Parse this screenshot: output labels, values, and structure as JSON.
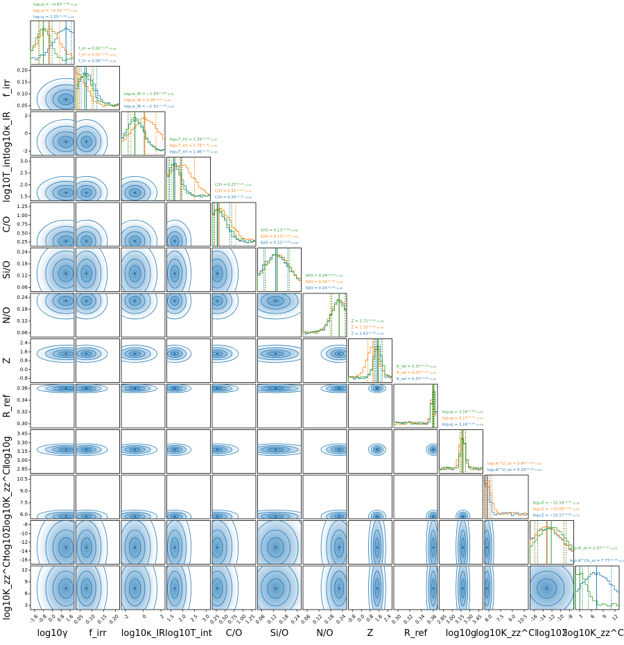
{
  "chart_data": {
    "type": "corner",
    "parameters": [
      {
        "id": "logg_gamma",
        "xlabel": "log10γ",
        "ylabel": "log10γ",
        "ticks": [
          "-1.6",
          "-0.8",
          "0.0",
          "0.8",
          "1.6"
        ],
        "range": [
          -2.0,
          2.0
        ]
      },
      {
        "id": "f_irr",
        "xlabel": "f_irr",
        "ylabel": "f_irr",
        "ticks": [
          "0.05",
          "0.10",
          "0.15",
          "0.20"
        ],
        "range": [
          0.0,
          0.25
        ]
      },
      {
        "id": "log_kappa_IR",
        "xlabel": "log10κ_IR",
        "ylabel": "log10κ_IR",
        "ticks": [
          "-2",
          "0",
          "2"
        ],
        "range": [
          -4.0,
          4.0
        ]
      },
      {
        "id": "log_T_int",
        "xlabel": "log10T_int",
        "ylabel": "log10T_int",
        "ticks": [
          "1.5",
          "2.0",
          "2.5",
          "3.0"
        ],
        "range": [
          1.0,
          3.5
        ]
      },
      {
        "id": "C_O",
        "xlabel": "C/O",
        "ylabel": "C/O",
        "ticks": [
          "0.25",
          "0.50",
          "0.75",
          "1.00",
          "1.25"
        ],
        "range": [
          0.1,
          1.4
        ]
      },
      {
        "id": "Si_O",
        "xlabel": "Si/O",
        "ylabel": "Si/O",
        "ticks": [
          "0.06",
          "0.12",
          "0.18",
          "0.24"
        ],
        "range": [
          0.0,
          0.29
        ]
      },
      {
        "id": "N_O",
        "xlabel": "N/O",
        "ylabel": "N/O",
        "ticks": [
          "0.06",
          "0.12",
          "0.18",
          "0.24"
        ],
        "range": [
          0.0,
          0.29
        ]
      },
      {
        "id": "Z",
        "xlabel": "Z",
        "ylabel": "Z",
        "ticks": [
          "-0.8",
          "0.0",
          "0.8",
          "1.6",
          "2.4"
        ],
        "range": [
          -1.0,
          3.0
        ]
      },
      {
        "id": "R_ref",
        "xlabel": "R_ref",
        "ylabel": "R_ref",
        "ticks": [
          "0.30",
          "0.32",
          "0.34",
          "0.36"
        ],
        "range": [
          0.29,
          0.375
        ]
      },
      {
        "id": "log_g",
        "xlabel": "log10g",
        "ylabel": "log10g",
        "ticks": [
          "2.85",
          "3.00",
          "3.15",
          "3.30",
          "3.45"
        ],
        "range": [
          2.8,
          3.5
        ]
      },
      {
        "id": "log_Kzz_Cl",
        "xlabel": "log10K_zz^Cl",
        "ylabel": "log10K_zz^Cl",
        "ticks": [
          "6.0",
          "7.5",
          "9.0",
          "10.5"
        ],
        "range": [
          5.0,
          11.5
        ]
      },
      {
        "id": "log_Sigma",
        "xlabel": "log10Σ̇",
        "ylabel": "log10Σ̇",
        "ticks": [
          "-16",
          "-14",
          "-12",
          "-10",
          "-8"
        ],
        "range": [
          -17.0,
          -7.0
        ]
      },
      {
        "id": "log_Kzz_Ch",
        "xlabel": "log10K_zz^Ch",
        "ylabel": "log10K_zz^Ch",
        "ticks": [
          "3",
          "6",
          "9",
          "12"
        ],
        "range": [
          1.0,
          15.0
        ]
      }
    ],
    "row_tick_overrides": {
      "f_irr": [
        "0.05",
        "0.10",
        "0.15",
        "0.20"
      ],
      "Z": [
        "-0.8",
        "0.0",
        "0.8",
        "1.6",
        "2.4"
      ],
      "log_Kzz_Cl": [
        "6.0",
        "7.5",
        "9.0",
        "10.5"
      ],
      "log_Kzz_Ch": [
        "3",
        "6",
        "9",
        "12"
      ]
    },
    "series_colors": {
      "green": "#2ca02c",
      "orange": "#ff7f0e",
      "blue": "#1f77b4"
    },
    "summaries": [
      {
        "param": "logg_gamma",
        "green": "log₁₀γ = −0.83⁺⁰·⁸⁰₋₀.₄₂",
        "orange": "log₁₀γ = −0.33⁺¹·⁰⁰₋₀.₈₅",
        "blue": "log₁₀γ = 1.25⁺⁰·⁴⁹₋₁.₅₀",
        "med": {
          "green": -0.83,
          "orange": -0.33,
          "blue": 1.25
        },
        "lo": {
          "green": -1.25,
          "orange": -1.18,
          "blue": -0.25
        },
        "hi": {
          "green": -0.03,
          "orange": 0.67,
          "blue": 1.74
        }
      },
      {
        "param": "f_irr",
        "green": "f_irr = 0.05⁺⁰·⁰⁵₋₀.₀₃",
        "orange": "f_irr = 0.01⁺⁰·⁰⁸₋₀.₀₁",
        "blue": "f_irr = 0.06⁺⁰·⁰⁶₋₀.₀₃",
        "med": {
          "green": 0.05,
          "orange": 0.01,
          "blue": 0.06
        },
        "lo": {
          "green": 0.02,
          "orange": 0.0,
          "blue": 0.03
        },
        "hi": {
          "green": 0.1,
          "orange": 0.09,
          "blue": 0.12
        }
      },
      {
        "param": "log_kappa_IR",
        "green": "log₁₀κ_IR = −1.53⁺¹·⁶⁹₋₁.₂₂",
        "orange": "log₁₀κ_IR = 0.28⁺²·⁰⁷₋₂.₅₄",
        "blue": "log₁₀κ_IR = −1.51⁺¹·⁷⁹₋₁.₂₅",
        "med": {
          "green": -1.53,
          "orange": 0.28,
          "blue": -1.51
        },
        "lo": {
          "green": -2.75,
          "orange": -2.26,
          "blue": -2.76
        },
        "hi": {
          "green": 0.16,
          "orange": 2.35,
          "blue": 0.28
        }
      },
      {
        "param": "log_T_int",
        "green": "log₁₀T_int = 1.39⁺⁰·⁴⁴₋₀.₂₇",
        "orange": "log₁₀T_int = 1.78⁺⁰·⁸¹₋₀.₄₉",
        "blue": "log₁₀T_int = 1.46⁺⁰·⁴¹₋₀.₂₉",
        "med": {
          "green": 1.39,
          "orange": 1.78,
          "blue": 1.46
        },
        "lo": {
          "green": 1.12,
          "orange": 1.29,
          "blue": 1.17
        },
        "hi": {
          "green": 1.83,
          "orange": 2.59,
          "blue": 1.87
        }
      },
      {
        "param": "C_O",
        "green": "C/O = 0.27⁺⁰·⁴¹₋₀.₁₁",
        "orange": "C/O = 0.31⁺⁰·⁴⁹₋₀.₁₄",
        "blue": "C/O = 0.25⁺⁰·³⁷₋₀.₁₀",
        "med": {
          "green": 0.27,
          "orange": 0.31,
          "blue": 0.25
        },
        "lo": {
          "green": 0.16,
          "orange": 0.17,
          "blue": 0.15
        },
        "hi": {
          "green": 0.68,
          "orange": 0.8,
          "blue": 0.62
        }
      },
      {
        "param": "Si_O",
        "green": "Si/O = 0.13⁺⁰·⁰⁸₋₀.₀₈",
        "orange": "Si/O = 0.13⁺⁰·⁰⁸₋₀.₀₈",
        "blue": "Si/O = 0.12⁺⁰·⁰⁸₋₀.₀₈",
        "med": {
          "green": 0.13,
          "orange": 0.13,
          "blue": 0.12
        },
        "lo": {
          "green": 0.05,
          "orange": 0.05,
          "blue": 0.04
        },
        "hi": {
          "green": 0.21,
          "orange": 0.21,
          "blue": 0.2
        }
      },
      {
        "param": "N_O",
        "green": "N/O = 0.24⁺⁰·⁰⁴₋₀.₀₅",
        "orange": "N/O = 0.24⁺⁰·⁰⁴₋₀.₀₆",
        "blue": "N/O = 0.24⁺⁰·⁰⁴₋₀.₀₅",
        "med": {
          "green": 0.24,
          "orange": 0.24,
          "blue": 0.24
        },
        "lo": {
          "green": 0.19,
          "orange": 0.18,
          "blue": 0.19
        },
        "hi": {
          "green": 0.28,
          "orange": 0.28,
          "blue": 0.28
        }
      },
      {
        "param": "Z",
        "green": "Z = 1.72⁺⁰·³⁹₋₀.₂₆",
        "orange": "Z = 1.25⁺⁰·⁵²₋₀.₄₆",
        "blue": "Z = 1.63⁺⁰·³⁵₋₀.₂₄",
        "med": {
          "green": 1.72,
          "orange": 1.25,
          "blue": 1.63
        },
        "lo": {
          "green": 1.46,
          "orange": 0.79,
          "blue": 1.39
        },
        "hi": {
          "green": 2.11,
          "orange": 1.77,
          "blue": 1.98
        }
      },
      {
        "param": "R_ref",
        "green": "R_ref = 0.37⁺⁰·⁰⁰₋₀.₀₀",
        "orange": "R_ref = 0.37⁺⁰·⁰⁰₋₀.₀₀",
        "blue": "R_ref = 0.37⁺⁰·⁰⁰₋₀.₀₀",
        "med": {
          "green": 0.367,
          "orange": 0.3665,
          "blue": 0.3668
        },
        "lo": {
          "green": 0.3655,
          "orange": 0.365,
          "blue": 0.3655
        },
        "hi": {
          "green": 0.3685,
          "orange": 0.3685,
          "blue": 0.3688
        }
      },
      {
        "param": "log_g",
        "green": "log₁₀g = 3.18⁺⁰·⁰⁴₋₀.₀₃",
        "orange": "log₁₀g = 3.17⁺⁰·⁰⁵₋₀.₀₄",
        "blue": "log₁₀g = 3.18⁺⁰·⁰⁴₋₀.₀₃",
        "med": {
          "green": 3.18,
          "orange": 3.17,
          "blue": 3.18
        },
        "lo": {
          "green": 3.15,
          "orange": 3.13,
          "blue": 3.15
        },
        "hi": {
          "green": 3.22,
          "orange": 3.22,
          "blue": 3.22
        }
      },
      {
        "param": "log_Kzz_Cl",
        "green": "",
        "orange": "log₁₀K^Cl_zz = 5.47⁺⁰·⁶⁴₋₀.₃₃",
        "blue": "log₁₀K^Cl_zz = 5.33⁺⁰·⁴⁸₋₀.₂₄",
        "med": {
          "orange": 5.47,
          "blue": 5.33
        },
        "lo": {
          "orange": 5.14,
          "blue": 5.09
        },
        "hi": {
          "orange": 6.11,
          "blue": 5.81
        }
      },
      {
        "param": "log_Sigma",
        "green": "log₁₀Σ̇ = −12.14⁺³·³⁷₋₃.₁₂",
        "orange": "log₁₀Σ̇ = −13.09⁺³·⁸⁶₋₂.₈₀",
        "blue": "log₁₀Σ̇ = −13.17⁺³·⁸⁹₋₂.₇₅",
        "med": {
          "green": -12.14,
          "orange": -13.09,
          "blue": -13.17
        },
        "lo": {
          "green": -15.26,
          "orange": -15.89,
          "blue": -15.92
        },
        "hi": {
          "green": -8.77,
          "orange": -9.23,
          "blue": -9.28
        }
      },
      {
        "param": "log_Kzz_Ch",
        "green": "log₁₀K_zz = 2.37⁺²·⁷⁷₋₁.₅₄",
        "orange": "",
        "blue": "log₁₀K^Ch_zz = 7.77⁺⁴·⁷³₋₄.₅₅",
        "med": {
          "green": 2.37,
          "blue": 7.77
        },
        "lo": {
          "green": 0.83,
          "blue": 3.22
        },
        "hi": {
          "green": 5.14,
          "blue": 12.5
        }
      }
    ]
  }
}
